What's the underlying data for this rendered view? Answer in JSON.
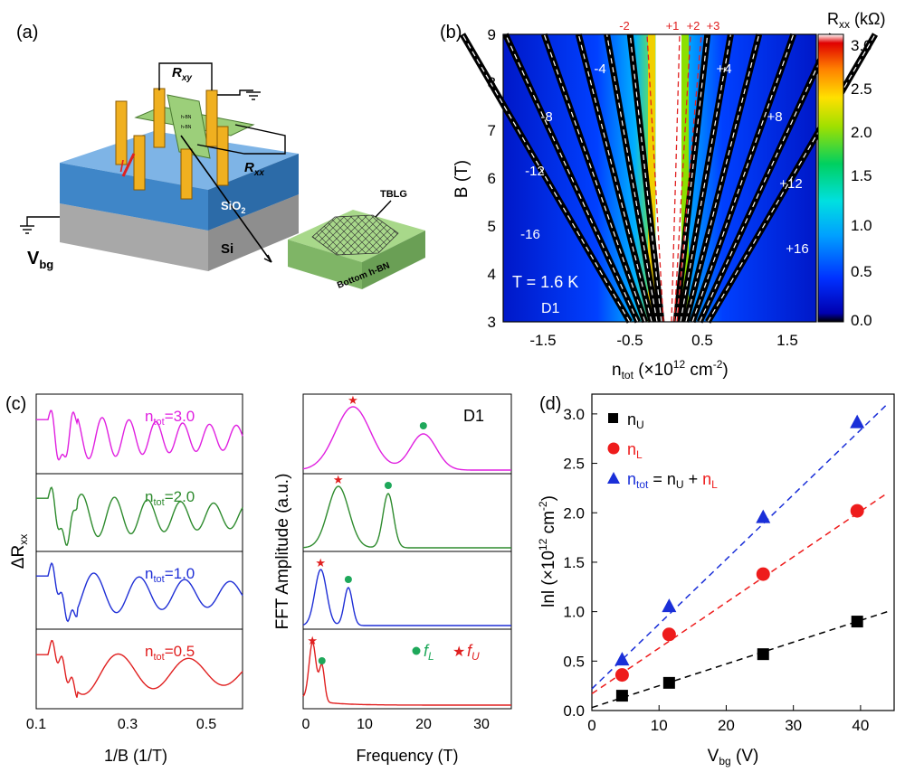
{
  "panel_labels": {
    "a": "(a)",
    "b": "(b)",
    "c": "(c)",
    "d": "(d)"
  },
  "device": {
    "r_xy": "R",
    "r_xy_sub": "xy",
    "r_xx": "R",
    "r_xx_sub": "xx",
    "current": "I",
    "sio2": "SiO",
    "sio2_sub": "2",
    "si": "Si",
    "v": "V",
    "v_sub": "bg",
    "tblg": "TBLG",
    "bottom_hbn": "Bottom h-BN",
    "hbn_small_1": "h-BN",
    "hbn_small_2": "h-BN"
  },
  "panel_b": {
    "colorbar_title": "R",
    "colorbar_title_sub": "xx",
    "colorbar_unit": " (kΩ)",
    "colorbar_ticks": [
      "3.0",
      "2.5",
      "2.0",
      "1.5",
      "1.0",
      "0.5",
      "0.0"
    ],
    "ylabel": "B (T)",
    "yticks": [
      "9",
      "8",
      "7",
      "6",
      "5",
      "4",
      "3"
    ],
    "xticks": [
      "-1.5",
      "-0.5",
      "0.5",
      "1.5"
    ],
    "xlabel_main": "n",
    "xlabel_sub": "tot",
    "xlabel_unit": " (×10",
    "xlabel_exp": "12",
    "xlabel_tail": " cm",
    "xlabel_exp2": "-2",
    "xlabel_close": ")",
    "fan_labels_top": [
      "-2",
      "+1",
      "+2",
      "+3"
    ],
    "fan_labels": [
      "-4",
      "+4",
      "-8",
      "+8",
      "-12",
      "+12",
      "-16",
      "+16"
    ],
    "temperature": "T = 1.6 K",
    "device_name": "D1"
  },
  "panel_c_left": {
    "ylabel_main": "ΔR",
    "ylabel_sub": "xx",
    "xlabel": "1/B (1/T)",
    "xticks": [
      "0.1",
      "0.3",
      "0.5"
    ],
    "traces": [
      {
        "label_main": "n",
        "label_sub": "tot",
        "label_val": "=3.0",
        "color": "#e020e0"
      },
      {
        "label_main": "n",
        "label_sub": "tot",
        "label_val": "=2.0",
        "color": "#2e8b2e"
      },
      {
        "label_main": "n",
        "label_sub": "tot",
        "label_val": "=1.0",
        "color": "#1f2fd6"
      },
      {
        "label_main": "n",
        "label_sub": "tot",
        "label_val": "=0.5",
        "color": "#e02020"
      }
    ]
  },
  "panel_c_right": {
    "ylabel": "FFT Amplitude (a.u.)",
    "xlabel": "Frequency (T)",
    "xticks": [
      "0",
      "10",
      "20",
      "30"
    ],
    "device_name": "D1",
    "legend_fl": "f",
    "legend_fl_sub": "L",
    "legend_fu": "f",
    "legend_fu_sub": "U",
    "fl_color": "#1ea85a",
    "fu_color": "#e02020"
  },
  "chart_data": {
    "type": "scatter",
    "xlabel": "V_bg (V)",
    "ylabel": "lnl (×10^12 cm^-2)",
    "xlim": [
      0,
      45
    ],
    "ylim": [
      0,
      3.2
    ],
    "xticks": [
      "0",
      "10",
      "20",
      "30",
      "40"
    ],
    "yticks": [
      "0.0",
      "0.5",
      "1.0",
      "1.5",
      "2.0",
      "2.5",
      "3.0"
    ],
    "ylabel_main": "lnl",
    "ylabel_unit": " (×10",
    "ylabel_exp": "12",
    "ylabel_tail": " cm",
    "ylabel_exp2": "-2",
    "ylabel_close": ")",
    "xlabel_main": "V",
    "xlabel_sub": "bg",
    "xlabel_unit": " (V)",
    "series": [
      {
        "name": "n_U",
        "color": "#000000",
        "marker": "square",
        "x": [
          4.5,
          11.5,
          25.5,
          39.5
        ],
        "y": [
          0.15,
          0.28,
          0.57,
          0.9
        ],
        "fit": [
          [
            0,
            0.03
          ],
          [
            44,
            1.0
          ]
        ]
      },
      {
        "name": "n_L",
        "color": "#ee1c1c",
        "marker": "circle",
        "x": [
          4.5,
          11.5,
          25.5,
          39.5
        ],
        "y": [
          0.36,
          0.77,
          1.38,
          2.02
        ],
        "fit": [
          [
            0,
            0.17
          ],
          [
            44,
            2.2
          ]
        ]
      },
      {
        "name": "n_tot = n_U + n_L",
        "color": "#1a2fd8",
        "marker": "triangle",
        "x": [
          4.5,
          11.5,
          25.5,
          39.5
        ],
        "y": [
          0.52,
          1.06,
          1.96,
          2.92
        ],
        "fit": [
          [
            0,
            0.22
          ],
          [
            44,
            3.1
          ]
        ]
      }
    ],
    "legend": [
      {
        "main": "n",
        "sub": "U"
      },
      {
        "main": "n",
        "sub": "L"
      },
      {
        "main": "n",
        "sub": "tot",
        "eq": " = n",
        "sub2": "U",
        "plus": " + ",
        "last": "n",
        "sub3": "L"
      }
    ]
  }
}
